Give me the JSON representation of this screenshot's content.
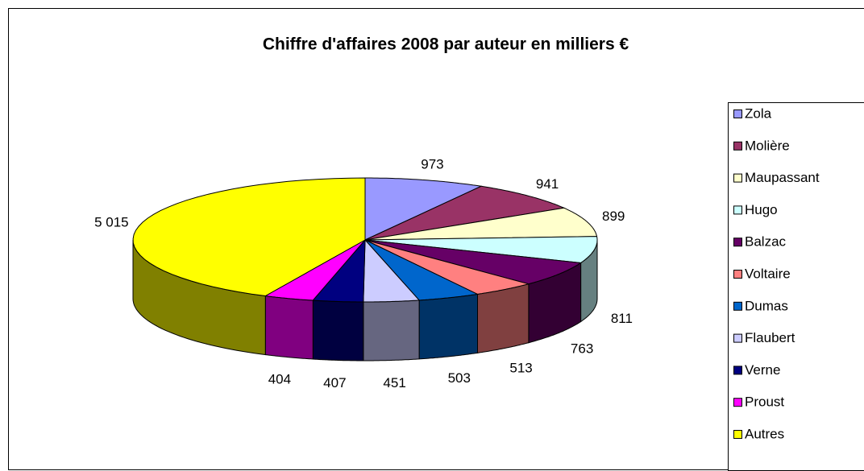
{
  "chart_data": {
    "type": "pie3d",
    "title": "Chiffre d'affaires 2008 par auteur en milliers €",
    "categories": [
      "Zola",
      "Molière",
      "Maupassant",
      "Hugo",
      "Balzac",
      "Voltaire",
      "Dumas",
      "Flaubert",
      "Verne",
      "Proust",
      "Autres"
    ],
    "values": [
      973,
      941,
      899,
      811,
      763,
      513,
      503,
      451,
      407,
      404,
      5015
    ],
    "value_labels": [
      "973",
      "941",
      "899",
      "811",
      "763",
      "513",
      "503",
      "451",
      "407",
      "404",
      "5 015"
    ],
    "colors": [
      "#9999ff",
      "#993366",
      "#ffffcc",
      "#ccffff",
      "#660066",
      "#ff8080",
      "#0066cc",
      "#ccccff",
      "#000080",
      "#ff00ff",
      "#ffff00"
    ],
    "legend": "right"
  }
}
